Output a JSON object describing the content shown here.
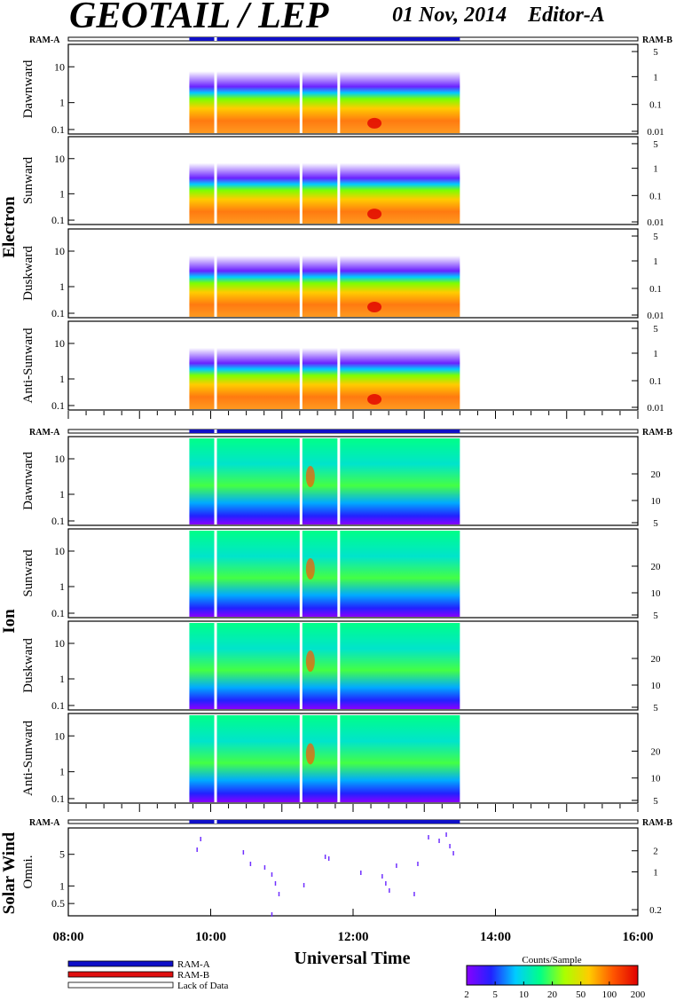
{
  "header": {
    "title": "GEOTAIL / LEP",
    "date": "01 Nov, 2014",
    "editor": "Editor-A"
  },
  "chart_data": {
    "type": "heatmap",
    "xlabel": "Universal Time",
    "x_ticks": [
      "08:00",
      "10:00",
      "12:00",
      "14:00",
      "16:00"
    ],
    "x_range_hours": [
      8,
      16
    ],
    "data_coverage_hours": [
      9.7,
      13.5
    ],
    "groups": [
      {
        "name": "Electron",
        "panels": [
          {
            "ylabel": "Dawnward",
            "left_ticks": [
              "10",
              "1",
              "0.1"
            ],
            "right_ticks": [
              "5",
              "1",
              "0.1",
              "0.01"
            ]
          },
          {
            "ylabel": "Sunward",
            "left_ticks": [
              "10",
              "1",
              "0.1"
            ],
            "right_ticks": [
              "5",
              "1",
              "0.1",
              "0.01"
            ]
          },
          {
            "ylabel": "Duskward",
            "left_ticks": [
              "10",
              "1",
              "0.1"
            ],
            "right_ticks": [
              "5",
              "1",
              "0.1",
              "0.01"
            ]
          },
          {
            "ylabel": "Anti-Sunward",
            "left_ticks": [
              "10",
              "1",
              "0.1"
            ],
            "right_ticks": [
              "5",
              "1",
              "0.1",
              "0.01"
            ]
          }
        ]
      },
      {
        "name": "Ion",
        "panels": [
          {
            "ylabel": "Dawnward",
            "left_ticks": [
              "10",
              "1",
              "0.1"
            ],
            "right_ticks": [
              "20",
              "10",
              "5"
            ]
          },
          {
            "ylabel": "Sunward",
            "left_ticks": [
              "10",
              "1",
              "0.1"
            ],
            "right_ticks": [
              "20",
              "10",
              "5"
            ]
          },
          {
            "ylabel": "Duskward",
            "left_ticks": [
              "10",
              "1",
              "0.1"
            ],
            "right_ticks": [
              "20",
              "10",
              "5"
            ]
          },
          {
            "ylabel": "Anti-Sunward",
            "left_ticks": [
              "10",
              "1",
              "0.1"
            ],
            "right_ticks": [
              "20",
              "10",
              "5"
            ]
          }
        ]
      },
      {
        "name": "Solar Wind",
        "panels": [
          {
            "ylabel": "Omni.",
            "left_ticks": [
              "5",
              "1",
              "0.5"
            ],
            "right_ticks": [
              "2",
              "1",
              "0.2"
            ]
          }
        ]
      }
    ],
    "status_bar": {
      "left_label": "RAM-A",
      "right_label": "RAM-B"
    },
    "legend": {
      "items": [
        {
          "label": "RAM-A",
          "color": "#1010c8"
        },
        {
          "label": "RAM-B",
          "color": "#e01010"
        },
        {
          "label": "Lack of Data",
          "color": "#ffffff"
        }
      ]
    },
    "colorbar": {
      "title": "Counts/Sample",
      "ticks": [
        "2",
        "5",
        "10",
        "20",
        "50",
        "100",
        "200"
      ],
      "stops": [
        "#8800ff",
        "#2222ff",
        "#00ccff",
        "#00ff88",
        "#aaff00",
        "#ffcc00",
        "#ff5500",
        "#e00000"
      ]
    }
  }
}
